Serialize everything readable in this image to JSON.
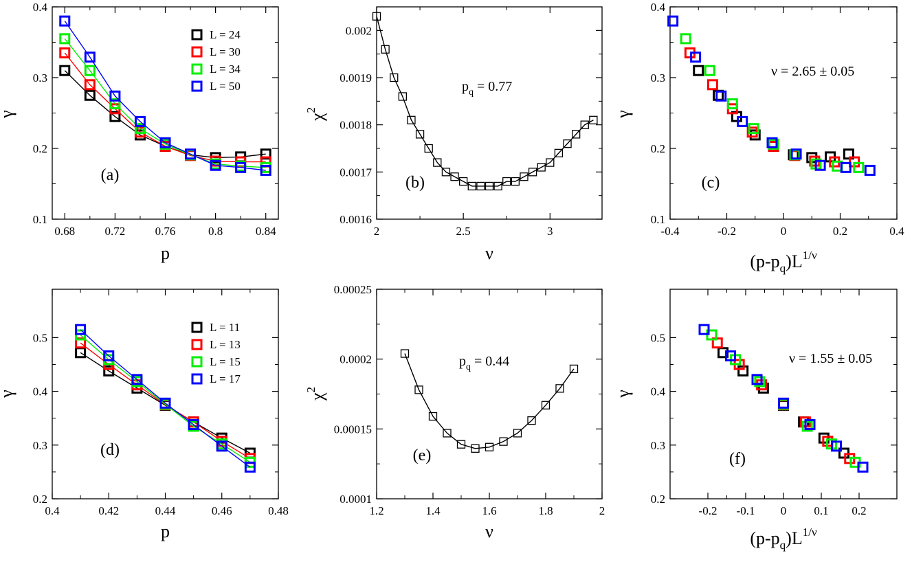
{
  "chart_data": [
    {
      "type": "line",
      "panel_label": "(a)",
      "xlabel": "p",
      "ylabel": "γ",
      "xlim": [
        0.67,
        0.85
      ],
      "ylim": [
        0.1,
        0.4
      ],
      "xticks": [
        "0.68",
        "0.72",
        "0.76",
        "0.8",
        "0.84"
      ],
      "xtick_values": [
        0.68,
        0.72,
        0.76,
        0.8,
        0.84
      ],
      "yticks": [
        "0.1",
        "0.2",
        "0.3",
        "0.4"
      ],
      "ytick_values": [
        0.1,
        0.2,
        0.3,
        0.4
      ],
      "legend": "top-right",
      "series": [
        {
          "name": "L = 24",
          "color": "#000000",
          "x": [
            0.68,
            0.7,
            0.72,
            0.74,
            0.76,
            0.78,
            0.8,
            0.82,
            0.84
          ],
          "y": [
            0.31,
            0.275,
            0.245,
            0.219,
            0.203,
            0.191,
            0.187,
            0.188,
            0.192
          ]
        },
        {
          "name": "L = 30",
          "color": "#ff0000",
          "x": [
            0.68,
            0.7,
            0.72,
            0.74,
            0.76,
            0.78,
            0.8,
            0.82,
            0.84
          ],
          "y": [
            0.335,
            0.29,
            0.256,
            0.223,
            0.203,
            0.19,
            0.182,
            0.181,
            0.181
          ]
        },
        {
          "name": "L = 34",
          "color": "#00ee00",
          "x": [
            0.68,
            0.7,
            0.72,
            0.74,
            0.76,
            0.78,
            0.8,
            0.82,
            0.84
          ],
          "y": [
            0.355,
            0.31,
            0.263,
            0.228,
            0.206,
            0.191,
            0.178,
            0.175,
            0.173
          ]
        },
        {
          "name": "L = 50",
          "color": "#0000ff",
          "x": [
            0.68,
            0.7,
            0.72,
            0.74,
            0.76,
            0.78,
            0.8,
            0.82,
            0.84
          ],
          "y": [
            0.38,
            0.329,
            0.274,
            0.238,
            0.208,
            0.192,
            0.176,
            0.173,
            0.169
          ]
        }
      ]
    },
    {
      "type": "line",
      "panel_label": "(b)",
      "xlabel": "ν",
      "ylabel": "χ",
      "ylabel_sup": "2",
      "annotation": "p",
      "annotation_sub": "q",
      "annotation_rest": " = 0.77",
      "xlim": [
        2.0,
        3.3
      ],
      "ylim": [
        0.0016,
        0.00205
      ],
      "xticks": [
        "2",
        "2.5",
        "3"
      ],
      "xtick_values": [
        2.0,
        2.5,
        3.0
      ],
      "yticks": [
        "0.0016",
        "0.0017",
        "0.0018",
        "0.0019",
        "0.002"
      ],
      "ytick_values": [
        0.0016,
        0.0017,
        0.0018,
        0.0019,
        0.002
      ],
      "series": [
        {
          "name": "chi2",
          "color": "#000000",
          "x": [
            2.0,
            2.05,
            2.1,
            2.15,
            2.2,
            2.25,
            2.3,
            2.35,
            2.4,
            2.45,
            2.5,
            2.55,
            2.6,
            2.65,
            2.7,
            2.75,
            2.8,
            2.85,
            2.9,
            2.95,
            3.0,
            3.05,
            3.1,
            3.15,
            3.2,
            3.25
          ],
          "y": [
            0.00203,
            0.00196,
            0.0019,
            0.00186,
            0.00181,
            0.00178,
            0.00175,
            0.00172,
            0.0017,
            0.00169,
            0.00168,
            0.00167,
            0.00167,
            0.00167,
            0.00167,
            0.00168,
            0.00168,
            0.00169,
            0.0017,
            0.00171,
            0.00172,
            0.00174,
            0.00176,
            0.00178,
            0.0018,
            0.00181
          ]
        }
      ]
    },
    {
      "type": "scatter",
      "panel_label": "(c)",
      "xlabel": "(p-p",
      "xlabel_sub": "q",
      "xlabel_rest": ")L",
      "xlabel_sup": "1/ν",
      "ylabel": "γ",
      "annotation": "ν = 2.65 ± 0.05",
      "xlim": [
        -0.4,
        0.4
      ],
      "ylim": [
        0.1,
        0.4
      ],
      "xticks": [
        "-0.4",
        "-0.2",
        "0",
        "0.2",
        "0.4"
      ],
      "xtick_values": [
        -0.4,
        -0.2,
        0.0,
        0.2,
        0.4
      ],
      "yticks": [
        "0.1",
        "0.2",
        "0.3",
        "0.4"
      ],
      "ytick_values": [
        0.1,
        0.2,
        0.3,
        0.4
      ],
      "series": [
        {
          "name": "L = 24",
          "color": "#000000",
          "x": [
            -0.3,
            -0.23,
            -0.165,
            -0.1,
            -0.035,
            0.035,
            0.1,
            0.165,
            0.23
          ],
          "y": [
            0.31,
            0.275,
            0.245,
            0.219,
            0.203,
            0.191,
            0.187,
            0.188,
            0.192
          ]
        },
        {
          "name": "L = 30",
          "color": "#ff0000",
          "x": [
            -0.33,
            -0.25,
            -0.18,
            -0.11,
            -0.035,
            0.04,
            0.11,
            0.18,
            0.25
          ],
          "y": [
            0.335,
            0.29,
            0.256,
            0.223,
            0.203,
            0.19,
            0.182,
            0.181,
            0.181
          ]
        },
        {
          "name": "L = 34",
          "color": "#00ee00",
          "x": [
            -0.345,
            -0.26,
            -0.18,
            -0.105,
            -0.035,
            0.04,
            0.115,
            0.19,
            0.265
          ],
          "y": [
            0.355,
            0.31,
            0.263,
            0.228,
            0.206,
            0.191,
            0.178,
            0.175,
            0.173
          ]
        },
        {
          "name": "L = 50",
          "color": "#0000ff",
          "x": [
            -0.39,
            -0.31,
            -0.22,
            -0.145,
            -0.04,
            0.045,
            0.13,
            0.22,
            0.305
          ],
          "y": [
            0.38,
            0.329,
            0.274,
            0.238,
            0.208,
            0.192,
            0.176,
            0.173,
            0.169
          ]
        }
      ]
    },
    {
      "type": "line",
      "panel_label": "(d)",
      "xlabel": "p",
      "ylabel": "γ",
      "xlim": [
        0.4,
        0.48
      ],
      "ylim": [
        0.2,
        0.59
      ],
      "xticks": [
        "0.4",
        "0.42",
        "0.44",
        "0.46",
        "0.48"
      ],
      "xtick_values": [
        0.4,
        0.42,
        0.44,
        0.46,
        0.48
      ],
      "yticks": [
        "0.2",
        "0.3",
        "0.4",
        "0.5"
      ],
      "ytick_values": [
        0.2,
        0.3,
        0.4,
        0.5
      ],
      "legend": "top-right",
      "series": [
        {
          "name": "L = 11",
          "color": "#000000",
          "x": [
            0.41,
            0.42,
            0.43,
            0.44,
            0.45,
            0.46,
            0.47
          ],
          "y": [
            0.472,
            0.438,
            0.406,
            0.374,
            0.343,
            0.313,
            0.285
          ]
        },
        {
          "name": "L = 13",
          "color": "#ff0000",
          "x": [
            0.41,
            0.42,
            0.43,
            0.44,
            0.45,
            0.46,
            0.47
          ],
          "y": [
            0.49,
            0.45,
            0.412,
            0.375,
            0.343,
            0.307,
            0.275
          ]
        },
        {
          "name": "L = 15",
          "color": "#00ee00",
          "x": [
            0.41,
            0.42,
            0.43,
            0.44,
            0.45,
            0.46,
            0.47
          ],
          "y": [
            0.505,
            0.459,
            0.418,
            0.376,
            0.335,
            0.302,
            0.268
          ]
        },
        {
          "name": "L = 17",
          "color": "#0000ff",
          "x": [
            0.41,
            0.42,
            0.43,
            0.44,
            0.45,
            0.46,
            0.47
          ],
          "y": [
            0.515,
            0.466,
            0.422,
            0.378,
            0.338,
            0.298,
            0.259
          ]
        }
      ]
    },
    {
      "type": "line",
      "panel_label": "(e)",
      "xlabel": "ν",
      "ylabel": "χ",
      "ylabel_sup": "2",
      "annotation": "p",
      "annotation_sub": "q",
      "annotation_rest": " = 0.44",
      "xlim": [
        1.2,
        2.0
      ],
      "ylim": [
        0.0001,
        0.00025
      ],
      "xticks": [
        "1.2",
        "1.4",
        "1.6",
        "1.8",
        "2"
      ],
      "xtick_values": [
        1.2,
        1.4,
        1.6,
        1.8,
        2.0
      ],
      "yticks": [
        "0.0001",
        "0.00015",
        "0.0002",
        "0.00025"
      ],
      "ytick_values": [
        0.0001,
        0.00015,
        0.0002,
        0.00025
      ],
      "series": [
        {
          "name": "chi2",
          "color": "#000000",
          "x": [
            1.3,
            1.35,
            1.4,
            1.45,
            1.5,
            1.55,
            1.6,
            1.65,
            1.7,
            1.75,
            1.8,
            1.85,
            1.9
          ],
          "y": [
            0.000204,
            0.000178,
            0.000159,
            0.000147,
            0.000139,
            0.000136,
            0.000137,
            0.000141,
            0.000147,
            0.000156,
            0.000167,
            0.000179,
            0.000193
          ]
        }
      ]
    },
    {
      "type": "scatter",
      "panel_label": "(f)",
      "xlabel": "(p-p",
      "xlabel_sub": "q",
      "xlabel_rest": ")L",
      "xlabel_sup": "1/ν",
      "ylabel": "γ",
      "annotation": "ν = 1.55 ± 0.05",
      "xlim": [
        -0.3,
        0.3
      ],
      "ylim": [
        0.2,
        0.59
      ],
      "xticks": [
        "-0.2",
        "-0.1",
        "0",
        "0.1",
        "0.2"
      ],
      "xtick_values": [
        -0.2,
        -0.1,
        0.0,
        0.1,
        0.2
      ],
      "yticks": [
        "0.2",
        "0.3",
        "0.4",
        "0.5"
      ],
      "ytick_values": [
        0.2,
        0.3,
        0.4,
        0.5
      ],
      "series": [
        {
          "name": "L = 11",
          "color": "#000000",
          "x": [
            -0.16,
            -0.107,
            -0.053,
            0.0,
            0.053,
            0.107,
            0.16
          ],
          "y": [
            0.472,
            0.438,
            0.406,
            0.374,
            0.343,
            0.313,
            0.285
          ]
        },
        {
          "name": "L = 13",
          "color": "#ff0000",
          "x": [
            -0.175,
            -0.117,
            -0.058,
            0.0,
            0.058,
            0.117,
            0.175
          ],
          "y": [
            0.49,
            0.45,
            0.412,
            0.375,
            0.343,
            0.307,
            0.275
          ]
        },
        {
          "name": "L = 15",
          "color": "#00ee00",
          "x": [
            -0.19,
            -0.127,
            -0.063,
            0.0,
            0.063,
            0.127,
            0.19
          ],
          "y": [
            0.505,
            0.459,
            0.418,
            0.376,
            0.335,
            0.302,
            0.268
          ]
        },
        {
          "name": "L = 17",
          "color": "#0000ff",
          "x": [
            -0.21,
            -0.14,
            -0.07,
            0.0,
            0.07,
            0.14,
            0.21
          ],
          "y": [
            0.515,
            0.466,
            0.422,
            0.378,
            0.338,
            0.298,
            0.259
          ]
        }
      ]
    }
  ]
}
